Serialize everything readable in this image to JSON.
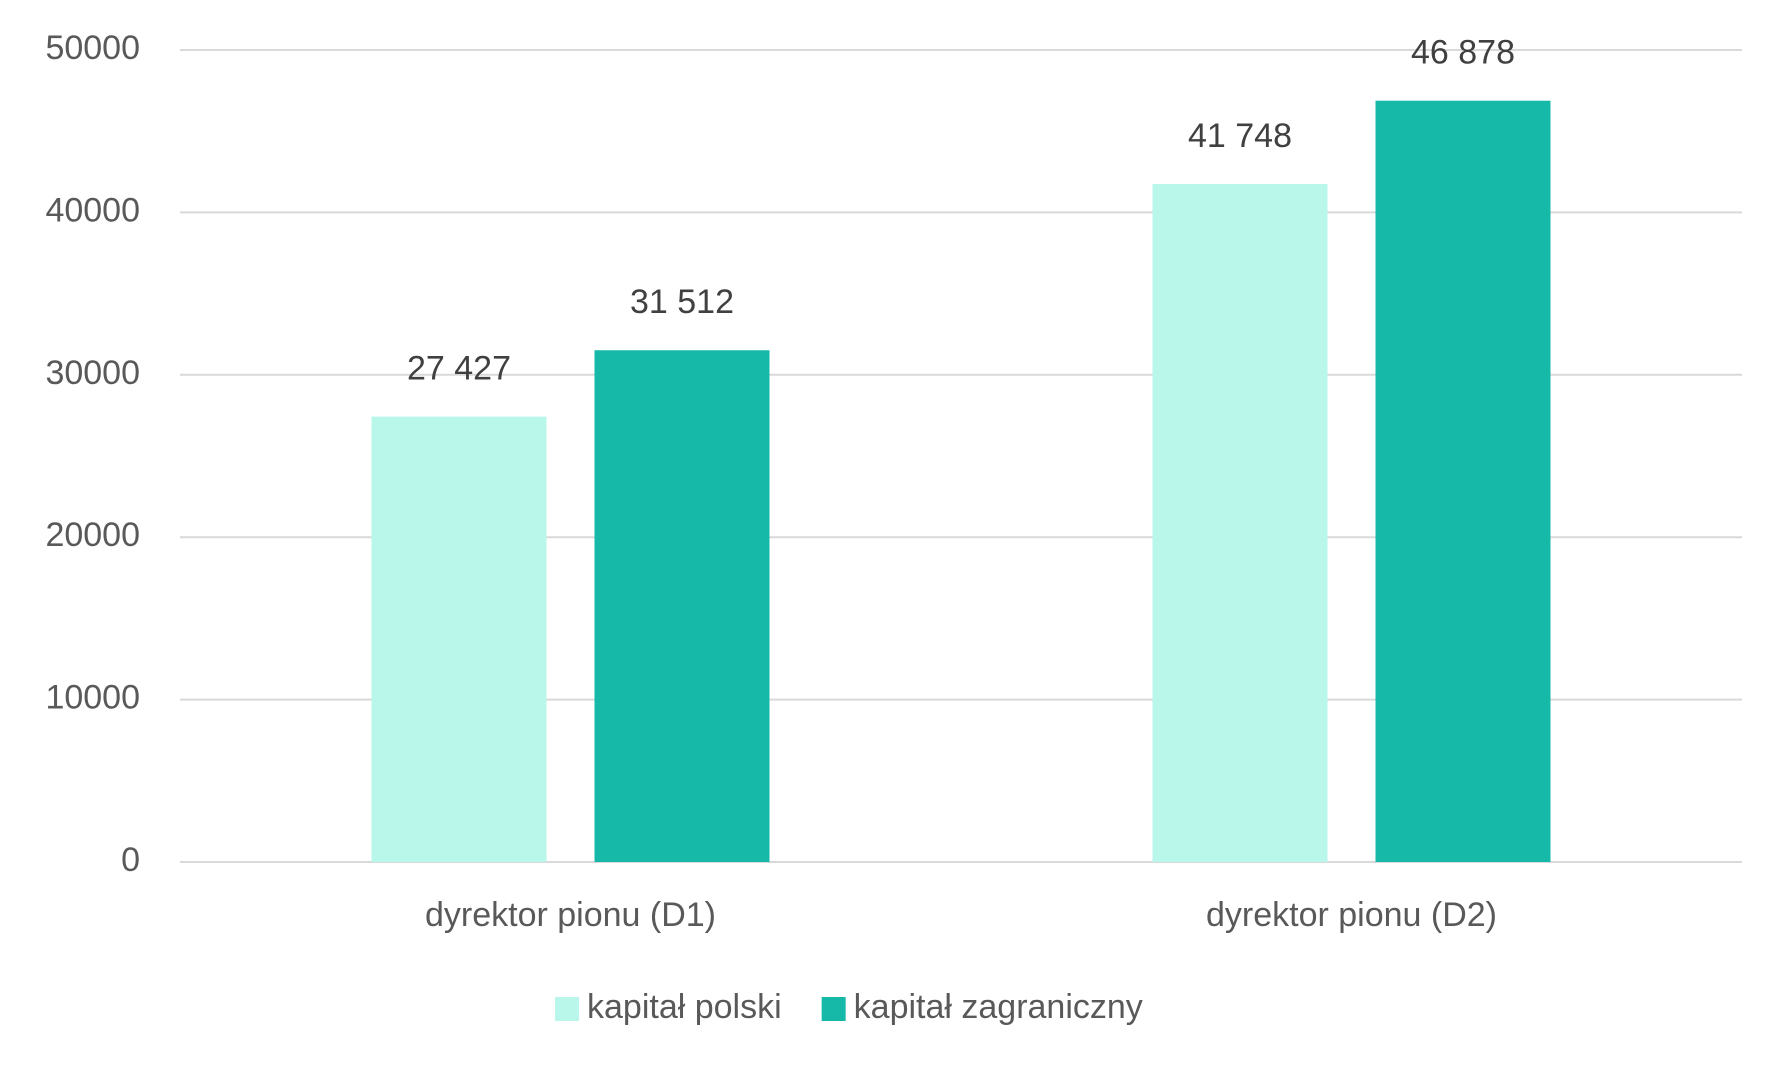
{
  "chart_data": {
    "type": "bar",
    "categories": [
      "dyrektor pionu (D1)",
      "dyrektor pionu (D2)"
    ],
    "series": [
      {
        "name": "kapitał polski",
        "color": "#b8f7ea",
        "values": [
          27427,
          41748
        ],
        "value_labels": [
          "27 427",
          "41 748"
        ]
      },
      {
        "name": "kapitał zagraniczny",
        "color": "#16b8a8",
        "values": [
          31512,
          46878
        ],
        "value_labels": [
          "31 512",
          "46 878"
        ]
      }
    ],
    "ylim": [
      0,
      50000
    ],
    "yticks": [
      0,
      10000,
      20000,
      30000,
      40000,
      50000
    ],
    "grid": true,
    "legend": "bottom"
  }
}
